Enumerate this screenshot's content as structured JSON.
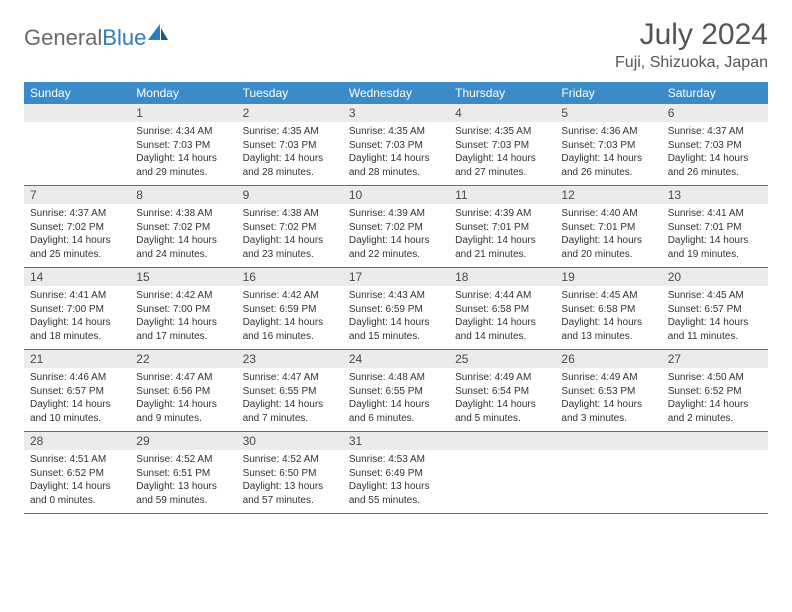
{
  "logo": {
    "text_gray": "General",
    "text_blue": "Blue"
  },
  "header": {
    "month_title": "July 2024",
    "location": "Fuji, Shizuoka, Japan"
  },
  "colors": {
    "header_bg": "#3b8bc9",
    "header_text": "#ffffff",
    "daynum_bg": "#ebebeb",
    "row_border": "#2f7cc0",
    "body_text": "#333333"
  },
  "day_names": [
    "Sunday",
    "Monday",
    "Tuesday",
    "Wednesday",
    "Thursday",
    "Friday",
    "Saturday"
  ],
  "weeks": [
    [
      null,
      {
        "n": "1",
        "sunrise": "4:34 AM",
        "sunset": "7:03 PM",
        "daylight": "14 hours and 29 minutes."
      },
      {
        "n": "2",
        "sunrise": "4:35 AM",
        "sunset": "7:03 PM",
        "daylight": "14 hours and 28 minutes."
      },
      {
        "n": "3",
        "sunrise": "4:35 AM",
        "sunset": "7:03 PM",
        "daylight": "14 hours and 28 minutes."
      },
      {
        "n": "4",
        "sunrise": "4:35 AM",
        "sunset": "7:03 PM",
        "daylight": "14 hours and 27 minutes."
      },
      {
        "n": "5",
        "sunrise": "4:36 AM",
        "sunset": "7:03 PM",
        "daylight": "14 hours and 26 minutes."
      },
      {
        "n": "6",
        "sunrise": "4:37 AM",
        "sunset": "7:03 PM",
        "daylight": "14 hours and 26 minutes."
      }
    ],
    [
      {
        "n": "7",
        "sunrise": "4:37 AM",
        "sunset": "7:02 PM",
        "daylight": "14 hours and 25 minutes."
      },
      {
        "n": "8",
        "sunrise": "4:38 AM",
        "sunset": "7:02 PM",
        "daylight": "14 hours and 24 minutes."
      },
      {
        "n": "9",
        "sunrise": "4:38 AM",
        "sunset": "7:02 PM",
        "daylight": "14 hours and 23 minutes."
      },
      {
        "n": "10",
        "sunrise": "4:39 AM",
        "sunset": "7:02 PM",
        "daylight": "14 hours and 22 minutes."
      },
      {
        "n": "11",
        "sunrise": "4:39 AM",
        "sunset": "7:01 PM",
        "daylight": "14 hours and 21 minutes."
      },
      {
        "n": "12",
        "sunrise": "4:40 AM",
        "sunset": "7:01 PM",
        "daylight": "14 hours and 20 minutes."
      },
      {
        "n": "13",
        "sunrise": "4:41 AM",
        "sunset": "7:01 PM",
        "daylight": "14 hours and 19 minutes."
      }
    ],
    [
      {
        "n": "14",
        "sunrise": "4:41 AM",
        "sunset": "7:00 PM",
        "daylight": "14 hours and 18 minutes."
      },
      {
        "n": "15",
        "sunrise": "4:42 AM",
        "sunset": "7:00 PM",
        "daylight": "14 hours and 17 minutes."
      },
      {
        "n": "16",
        "sunrise": "4:42 AM",
        "sunset": "6:59 PM",
        "daylight": "14 hours and 16 minutes."
      },
      {
        "n": "17",
        "sunrise": "4:43 AM",
        "sunset": "6:59 PM",
        "daylight": "14 hours and 15 minutes."
      },
      {
        "n": "18",
        "sunrise": "4:44 AM",
        "sunset": "6:58 PM",
        "daylight": "14 hours and 14 minutes."
      },
      {
        "n": "19",
        "sunrise": "4:45 AM",
        "sunset": "6:58 PM",
        "daylight": "14 hours and 13 minutes."
      },
      {
        "n": "20",
        "sunrise": "4:45 AM",
        "sunset": "6:57 PM",
        "daylight": "14 hours and 11 minutes."
      }
    ],
    [
      {
        "n": "21",
        "sunrise": "4:46 AM",
        "sunset": "6:57 PM",
        "daylight": "14 hours and 10 minutes."
      },
      {
        "n": "22",
        "sunrise": "4:47 AM",
        "sunset": "6:56 PM",
        "daylight": "14 hours and 9 minutes."
      },
      {
        "n": "23",
        "sunrise": "4:47 AM",
        "sunset": "6:55 PM",
        "daylight": "14 hours and 7 minutes."
      },
      {
        "n": "24",
        "sunrise": "4:48 AM",
        "sunset": "6:55 PM",
        "daylight": "14 hours and 6 minutes."
      },
      {
        "n": "25",
        "sunrise": "4:49 AM",
        "sunset": "6:54 PM",
        "daylight": "14 hours and 5 minutes."
      },
      {
        "n": "26",
        "sunrise": "4:49 AM",
        "sunset": "6:53 PM",
        "daylight": "14 hours and 3 minutes."
      },
      {
        "n": "27",
        "sunrise": "4:50 AM",
        "sunset": "6:52 PM",
        "daylight": "14 hours and 2 minutes."
      }
    ],
    [
      {
        "n": "28",
        "sunrise": "4:51 AM",
        "sunset": "6:52 PM",
        "daylight": "14 hours and 0 minutes."
      },
      {
        "n": "29",
        "sunrise": "4:52 AM",
        "sunset": "6:51 PM",
        "daylight": "13 hours and 59 minutes."
      },
      {
        "n": "30",
        "sunrise": "4:52 AM",
        "sunset": "6:50 PM",
        "daylight": "13 hours and 57 minutes."
      },
      {
        "n": "31",
        "sunrise": "4:53 AM",
        "sunset": "6:49 PM",
        "daylight": "13 hours and 55 minutes."
      },
      null,
      null,
      null
    ]
  ],
  "labels": {
    "sunrise": "Sunrise:",
    "sunset": "Sunset:",
    "daylight": "Daylight:"
  }
}
